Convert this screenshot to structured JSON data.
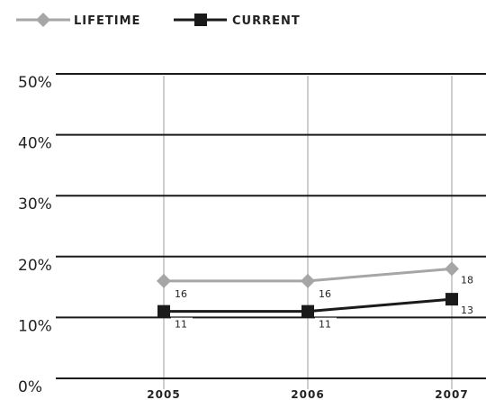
{
  "chart_data": {
    "type": "line",
    "title": "",
    "xlabel": "",
    "ylabel": "",
    "categories": [
      "2005",
      "2006",
      "2007"
    ],
    "yticks": [
      "0%",
      "10%",
      "20%",
      "30%",
      "40%",
      "50%"
    ],
    "ylim": [
      0,
      50
    ],
    "grid": "horizontal and vertical",
    "legend_position": "top-left",
    "series": [
      {
        "name": "LIFETIME",
        "values": [
          16,
          16,
          18
        ],
        "labels": [
          "16",
          "16",
          "18"
        ],
        "color": "#a6a6a6",
        "marker": "diamond"
      },
      {
        "name": "CURRENT",
        "values": [
          11,
          11,
          13
        ],
        "labels": [
          "11",
          "11",
          "13"
        ],
        "color": "#1a1a1a",
        "marker": "square"
      }
    ]
  }
}
